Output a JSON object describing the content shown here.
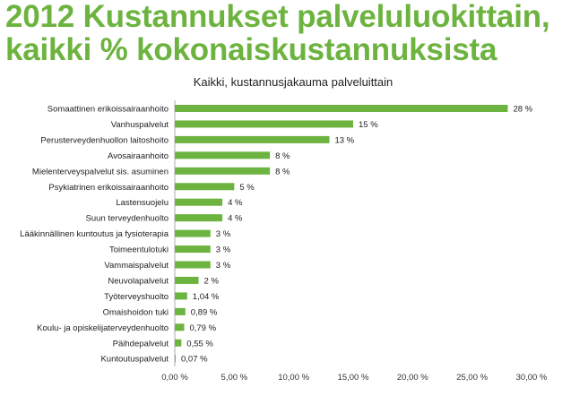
{
  "title_lines": [
    "2012 Kustannukset palveluluokittain,",
    "kaikki % kokonaiskustannuksista"
  ],
  "colors": {
    "title": "#6db33f",
    "bar": "#6db33f",
    "text": "#222222",
    "axis_text": "#333333",
    "axis_line": "#9a9a9a"
  },
  "chart_data": {
    "type": "bar",
    "orientation": "horizontal",
    "title": "Kaikki, kustannusjakauma palveluittain",
    "categories": [
      "Somaattinen erikoissairaanhoito",
      "Vanhuspalvelut",
      "Perusterveydenhuollon laitoshoito",
      "Avosairaanhoito",
      "Mielenterveyspalvelut sis. asuminen",
      "Psykiatrinen erikoissairaanhoito",
      "Lastensuojelu",
      "Suun terveydenhuolto",
      "Lääkinnällinen kuntoutus ja fysioterapia",
      "Toimeentulotuki",
      "Vammaispalvelut",
      "Neuvolapalvelut",
      "Työterveyshuolto",
      "Omaishoidon tuki",
      "Koulu- ja opiskelijaterveydenhuolto",
      "Päihdepalvelut",
      "Kuntoutuspalvelut"
    ],
    "values": [
      28.0,
      15.0,
      13.0,
      8.0,
      8.0,
      5.0,
      4.0,
      4.0,
      3.0,
      3.0,
      3.0,
      2.0,
      1.04,
      0.89,
      0.79,
      0.55,
      0.07
    ],
    "data_labels": [
      "28 %",
      "15 %",
      "13 %",
      "8 %",
      "8 %",
      "5 %",
      "4 %",
      "4 %",
      "3 %",
      "3 %",
      "3 %",
      "2 %",
      "1,04 %",
      "0,89 %",
      "0,79 %",
      "0,55 %",
      "0,07 %"
    ],
    "xlim": [
      0,
      30
    ],
    "x_ticks": [
      0,
      5,
      10,
      15,
      20,
      25,
      30
    ],
    "x_tick_labels": [
      "0,00 %",
      "5,00 %",
      "10,00 %",
      "15,00 %",
      "20,00 %",
      "25,00 %",
      "30,00 %"
    ],
    "grid": false,
    "legend": "none"
  }
}
